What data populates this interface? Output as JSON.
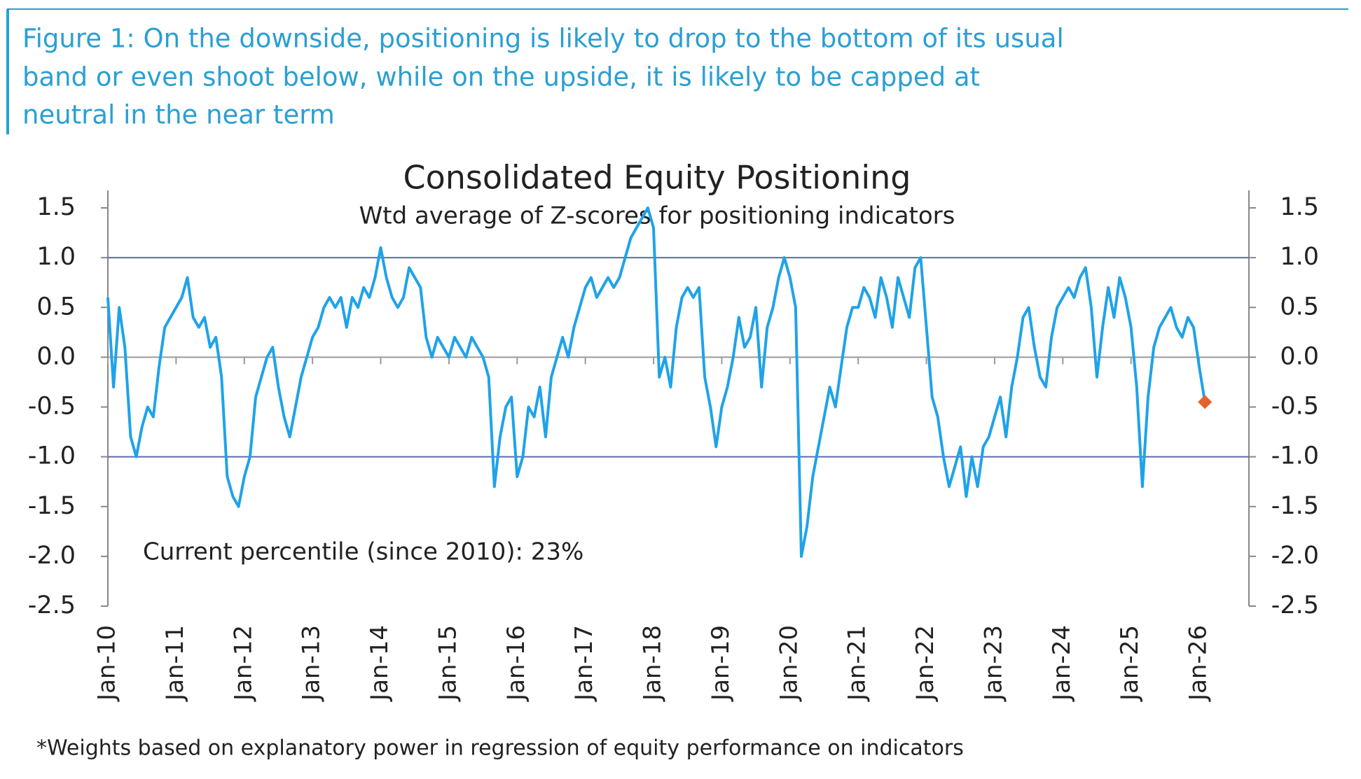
{
  "figure_caption": [
    "Figure 1: On the downside, positioning is likely to drop to the bottom of its usual",
    "band or even shoot below, while on the upside, it is likely to be capped at",
    "neutral in the near term"
  ],
  "chart_data": {
    "type": "line",
    "title": "Consolidated Equity Positioning",
    "subtitle": "Wtd average of Z-scores for positioning indicators",
    "annotation": "Current percentile (since 2010): 23%",
    "footnote": "*Weights based on explanatory power in regression of equity performance on indicators",
    "categories": [
      "Jan-10",
      null,
      null,
      null,
      null,
      null,
      null,
      null,
      null,
      null,
      null,
      null,
      "Jan-11",
      null,
      null,
      null,
      null,
      null,
      null,
      null,
      null,
      null,
      null,
      null,
      "Jan-12",
      null,
      null,
      null,
      null,
      null,
      null,
      null,
      null,
      null,
      null,
      null,
      "Jan-13",
      null,
      null,
      null,
      null,
      null,
      null,
      null,
      null,
      null,
      null,
      null,
      "Jan-14",
      null,
      null,
      null,
      null,
      null,
      null,
      null,
      null,
      null,
      null,
      null,
      "Jan-15",
      null,
      null,
      null,
      null,
      null,
      null,
      null,
      null,
      null,
      null,
      null,
      "Jan-16",
      null,
      null,
      null,
      null,
      null,
      null,
      null,
      null,
      null,
      null,
      null,
      "Jan-17",
      null,
      null,
      null,
      null,
      null,
      null,
      null,
      null,
      null,
      null,
      null,
      "Jan-18",
      null,
      null,
      null,
      null,
      null,
      null,
      null,
      null,
      null,
      null,
      null,
      "Jan-19",
      null,
      null,
      null,
      null,
      null,
      null,
      null,
      null,
      null,
      null,
      null,
      "Jan-20",
      null,
      null,
      null,
      null,
      null,
      null,
      null,
      null,
      null,
      null,
      null,
      "Jan-21",
      null,
      null,
      null,
      null,
      null,
      null,
      null,
      null,
      null,
      null,
      null,
      "Jan-22",
      null,
      null,
      null,
      null,
      null,
      null,
      null,
      null,
      null,
      null,
      null,
      "Jan-23",
      null,
      null,
      null,
      null,
      null,
      null,
      null,
      null,
      null,
      null,
      null,
      "Jan-24",
      null,
      null,
      null,
      null,
      null,
      null,
      null,
      null,
      null,
      null,
      null,
      "Jan-25",
      null,
      null,
      null,
      null,
      null,
      null,
      null,
      null,
      null,
      null,
      null,
      "Jan-26",
      null
    ],
    "series": [
      {
        "color": "#1fa3e8",
        "values": [
          0.6,
          -0.3,
          0.5,
          0.1,
          -0.8,
          -1.0,
          -0.7,
          -0.5,
          -0.6,
          -0.1,
          0.3,
          0.4,
          0.5,
          0.6,
          0.8,
          0.4,
          0.3,
          0.4,
          0.1,
          0.2,
          -0.2,
          -1.2,
          -1.4,
          -1.5,
          -1.2,
          -1.0,
          -0.4,
          -0.2,
          0.0,
          0.1,
          -0.3,
          -0.6,
          -0.8,
          -0.5,
          -0.2,
          0.0,
          0.2,
          0.3,
          0.5,
          0.6,
          0.5,
          0.6,
          0.3,
          0.6,
          0.5,
          0.7,
          0.6,
          0.8,
          1.1,
          0.8,
          0.6,
          0.5,
          0.6,
          0.9,
          0.8,
          0.7,
          0.2,
          0.0,
          0.2,
          0.1,
          0.0,
          0.2,
          0.1,
          0.0,
          0.2,
          0.1,
          0.0,
          -0.2,
          -1.3,
          -0.8,
          -0.5,
          -0.4,
          -1.2,
          -1.0,
          -0.5,
          -0.6,
          -0.3,
          -0.8,
          -0.2,
          0.0,
          0.2,
          0.0,
          0.3,
          0.5,
          0.7,
          0.8,
          0.6,
          0.7,
          0.8,
          0.7,
          0.8,
          1.0,
          1.2,
          1.3,
          1.4,
          1.5,
          1.3,
          -0.2,
          0.0,
          -0.3,
          0.3,
          0.6,
          0.7,
          0.6,
          0.7,
          -0.2,
          -0.5,
          -0.9,
          -0.5,
          -0.3,
          0.0,
          0.4,
          0.1,
          0.2,
          0.5,
          -0.3,
          0.3,
          0.5,
          0.8,
          1.0,
          0.8,
          0.5,
          -2.0,
          -1.7,
          -1.2,
          -0.9,
          -0.6,
          -0.3,
          -0.5,
          -0.1,
          0.3,
          0.5,
          0.5,
          0.7,
          0.6,
          0.4,
          0.8,
          0.6,
          0.3,
          0.8,
          0.6,
          0.4,
          0.9,
          1.0,
          0.3,
          -0.4,
          -0.6,
          -1.0,
          -1.3,
          -1.1,
          -0.9,
          -1.4,
          -1.0,
          -1.3,
          -0.9,
          -0.8,
          -0.6,
          -0.4,
          -0.8,
          -0.3,
          0.0,
          0.4,
          0.5,
          0.1,
          -0.2,
          -0.3,
          0.2,
          0.5,
          0.6,
          0.7,
          0.6,
          0.8,
          0.9,
          0.5,
          -0.2,
          0.3,
          0.7,
          0.4,
          0.8,
          0.6,
          0.3,
          -0.3,
          -1.3,
          -0.4,
          0.1,
          0.3,
          0.4,
          0.5,
          0.3,
          0.2,
          0.4,
          0.3,
          -0.1,
          -0.45
        ]
      }
    ],
    "last_point_color": "#e2622a",
    "reference_lines": [
      {
        "value": 1,
        "color": "#5a6bb0"
      },
      {
        "value": -1,
        "color": "#5a6bb0"
      }
    ],
    "zero_line_color": "#9a9a9a",
    "ylim": [
      -2.5,
      1.5
    ],
    "yticks": [
      {
        "value": -2.5,
        "label": "-2.5"
      },
      {
        "value": -2,
        "label": "-2.0"
      },
      {
        "value": -1.5,
        "label": "-1.5"
      },
      {
        "value": -1,
        "label": "-1.0"
      },
      {
        "value": -0.5,
        "label": "-0.5"
      },
      {
        "value": 0,
        "label": "0.0"
      },
      {
        "value": 0.5,
        "label": "0.5"
      },
      {
        "value": 1,
        "label": "1.0"
      },
      {
        "value": 1.5,
        "label": "1.5"
      }
    ],
    "y2lim": [
      -2.5,
      1.5
    ],
    "y2ticks": [
      {
        "value": -2.5,
        "label": "-2.5"
      },
      {
        "value": -2,
        "label": "-2.0"
      },
      {
        "value": -1.5,
        "label": "-1.5"
      },
      {
        "value": -1,
        "label": "-1.0"
      },
      {
        "value": -0.5,
        "label": "-0.5"
      },
      {
        "value": 0,
        "label": "0.0"
      },
      {
        "value": 0.5,
        "label": "0.5"
      },
      {
        "value": 1,
        "label": "1.0"
      },
      {
        "value": 1.5,
        "label": "1.5"
      }
    ]
  }
}
